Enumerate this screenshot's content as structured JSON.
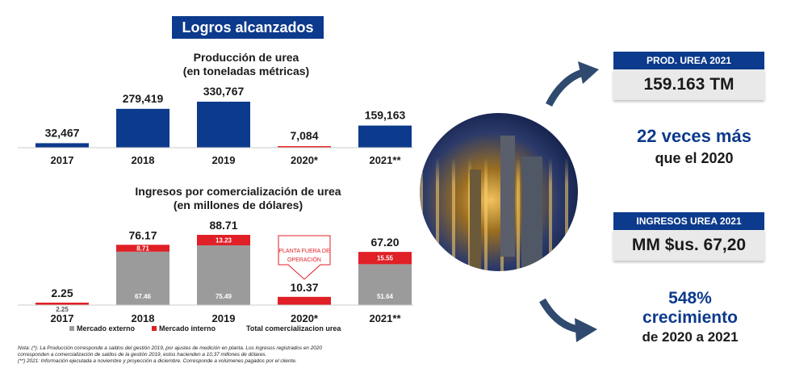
{
  "badge_title": "Logros alcanzados",
  "chart_data": [
    {
      "type": "bar",
      "title": "Producción de urea",
      "subtitle": "(en toneladas métricas)",
      "categories": [
        "2017",
        "2018",
        "2019",
        "2020*",
        "2021**"
      ],
      "values": [
        32467,
        279419,
        330767,
        7084,
        159163
      ],
      "value_labels": [
        "32,467",
        "279,419",
        "330,767",
        "7,084",
        "159,163"
      ],
      "colors": [
        "#0c3a8c",
        "#0c3a8c",
        "#0c3a8c",
        "#e8302f",
        "#0c3a8c"
      ]
    },
    {
      "type": "bar",
      "stacked": true,
      "title": "Ingresos por comercialización de urea",
      "subtitle": "(en millones de dólares)",
      "categories": [
        "2017",
        "2018",
        "2019",
        "2020*",
        "2021**"
      ],
      "series": [
        {
          "name": "Mercado externo",
          "color": "#9b9b9b",
          "values": [
            0,
            67.46,
            75.49,
            0,
            51.64
          ],
          "labels": [
            "",
            "67.46",
            "75.49",
            "",
            "51.64"
          ]
        },
        {
          "name": "Mercado interno",
          "color": "#e01f26",
          "values": [
            2.25,
            8.71,
            13.23,
            10.37,
            15.55
          ],
          "labels": [
            "2.25",
            "8.71",
            "13.23",
            "",
            "15.55"
          ]
        }
      ],
      "totals_name": "Total comercializacion urea",
      "totals": [
        "2.25",
        "76.17",
        "88.71",
        "10.37",
        "67.20"
      ],
      "annotation": "PLANTA FUERA DE OPERACIÓN"
    }
  ],
  "notes": [
    "Nota: (*): La Producción corresponde a saldos del gestión 2019, por ajustes de medición en planta. Los ingresos registrados en 2020",
    "corresponden a comercialización de saldos de la gestión 2019, estos hacienden a 10,37 millones de dólares.",
    "(**) 2021: Información ejecutada a noviembre y proyección a diciembre. Corresponde a volúmenes pagados por el cliente."
  ],
  "card_prod": {
    "header": "PROD. UREA 2021",
    "value": "159.163 TM"
  },
  "stat_prod": {
    "line1": "22 veces más",
    "line2": "que el 2020"
  },
  "card_ingresos": {
    "header": "INGRESOS UREA 2021",
    "value": "MM $us. 67,20"
  },
  "stat_ingresos": {
    "line1": "548%",
    "line2": "crecimiento",
    "line3": "de 2020 a 2021"
  },
  "accent_color": "#0c3a8c"
}
